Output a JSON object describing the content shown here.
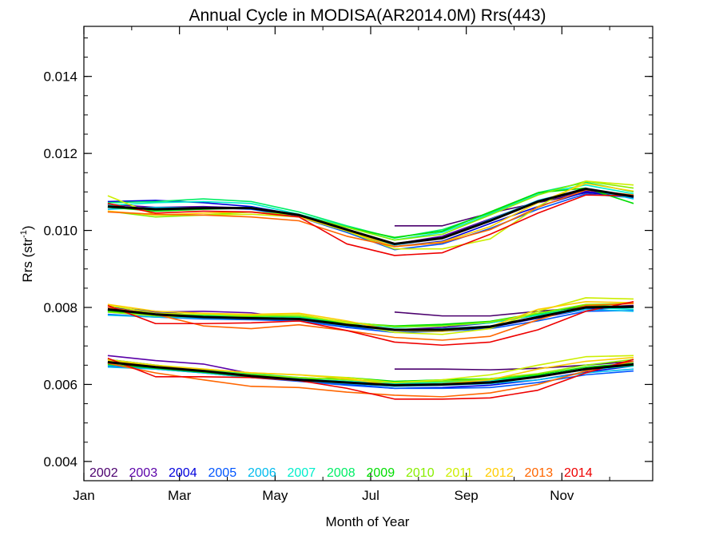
{
  "chart_data": {
    "type": "line",
    "title": "Annual Cycle in MODISA(AR2014.0M) Rrs(443)",
    "xlabel": "Month of Year",
    "ylabel_main": "Rrs (str",
    "ylabel_sup": "-1",
    "ylabel_close": ")",
    "xlim": [
      1,
      12.9
    ],
    "ylim": [
      0.0035,
      0.0153
    ],
    "x_ticks": [
      {
        "value": 1,
        "label": "Jan"
      },
      {
        "value": 3,
        "label": "Mar"
      },
      {
        "value": 5,
        "label": "May"
      },
      {
        "value": 7,
        "label": "Jul"
      },
      {
        "value": 9,
        "label": "Sep"
      },
      {
        "value": 11,
        "label": "Nov"
      }
    ],
    "y_ticks": [
      {
        "value": 0.004,
        "label": "0.004"
      },
      {
        "value": 0.006,
        "label": "0.006"
      },
      {
        "value": 0.008,
        "label": "0.008"
      },
      {
        "value": 0.01,
        "label": "0.010"
      },
      {
        "value": 0.012,
        "label": "0.012"
      },
      {
        "value": 0.014,
        "label": "0.014"
      }
    ],
    "grid": false,
    "legend_position": "bottom",
    "x": [
      1.5,
      2.5,
      3.5,
      4.5,
      5.5,
      6.5,
      7.5,
      8.5,
      9.5,
      10.5,
      11.5,
      12.5
    ],
    "series": [
      {
        "name": "2002",
        "color": "#4b006e",
        "groups": [
          [
            null,
            null,
            null,
            null,
            null,
            null,
            0.01012,
            0.01012,
            0.01045,
            0.01072,
            0.01098,
            0.01088
          ],
          [
            null,
            null,
            null,
            null,
            null,
            null,
            0.00788,
            0.00778,
            0.00778,
            0.0079,
            0.008,
            0.00802
          ],
          [
            null,
            null,
            null,
            null,
            null,
            null,
            0.0064,
            0.0064,
            0.00638,
            0.00642,
            0.0065,
            0.0066
          ]
        ]
      },
      {
        "name": "2003",
        "color": "#5a00a8",
        "groups": [
          [
            0.01068,
            0.0106,
            0.01062,
            0.01058,
            0.0104,
            0.01002,
            0.00965,
            0.00985,
            0.0103,
            0.01075,
            0.01102,
            0.01088
          ],
          [
            0.00792,
            0.00788,
            0.0079,
            0.00786,
            0.0077,
            0.00748,
            0.00742,
            0.00748,
            0.0076,
            0.0078,
            0.008,
            0.00805
          ],
          [
            0.00675,
            0.00662,
            0.00653,
            0.00628,
            0.00615,
            0.00605,
            0.00598,
            0.00602,
            0.00608,
            0.00622,
            0.0064,
            0.00655
          ]
        ]
      },
      {
        "name": "2004",
        "color": "#0000dd",
        "groups": [
          [
            0.01075,
            0.01078,
            0.01072,
            0.01062,
            0.0104,
            0.00998,
            0.00958,
            0.00972,
            0.01018,
            0.01062,
            0.011,
            0.01085
          ],
          [
            0.008,
            0.0079,
            0.00778,
            0.0077,
            0.00765,
            0.0075,
            0.00742,
            0.00742,
            0.00748,
            0.00772,
            0.00795,
            0.008
          ],
          [
            0.00665,
            0.0065,
            0.00636,
            0.0062,
            0.0061,
            0.006,
            0.0059,
            0.00592,
            0.00598,
            0.00612,
            0.00632,
            0.00648
          ]
        ]
      },
      {
        "name": "2005",
        "color": "#0055ff",
        "groups": [
          [
            0.0106,
            0.01055,
            0.0106,
            0.01055,
            0.01035,
            0.00995,
            0.0095,
            0.00965,
            0.01005,
            0.01055,
            0.01095,
            0.01085
          ],
          [
            0.00782,
            0.00775,
            0.0077,
            0.00768,
            0.00765,
            0.00748,
            0.00735,
            0.00738,
            0.00745,
            0.00765,
            0.0079,
            0.00792
          ],
          [
            0.00648,
            0.0064,
            0.0063,
            0.00618,
            0.00608,
            0.00598,
            0.0059,
            0.0059,
            0.00592,
            0.00605,
            0.00625,
            0.00635
          ]
        ]
      },
      {
        "name": "2006",
        "color": "#00bbee",
        "groups": [
          [
            0.01055,
            0.0106,
            0.01058,
            0.0106,
            0.0104,
            0.01,
            0.00962,
            0.0098,
            0.01028,
            0.01078,
            0.01108,
            0.01082
          ],
          [
            0.0078,
            0.00775,
            0.00772,
            0.0077,
            0.00768,
            0.00752,
            0.0074,
            0.00745,
            0.00752,
            0.00775,
            0.00795,
            0.0079
          ],
          [
            0.00645,
            0.0064,
            0.0063,
            0.00618,
            0.0061,
            0.00602,
            0.00595,
            0.00598,
            0.00602,
            0.00612,
            0.0063,
            0.0064
          ]
        ]
      },
      {
        "name": "2007",
        "color": "#00eecc",
        "groups": [
          [
            0.01065,
            0.01072,
            0.01075,
            0.0107,
            0.01042,
            0.0101,
            0.00975,
            0.00995,
            0.01042,
            0.01095,
            0.01118,
            0.01095
          ],
          [
            0.00788,
            0.0078,
            0.00778,
            0.00775,
            0.00772,
            0.0076,
            0.00748,
            0.00752,
            0.0076,
            0.0078,
            0.008,
            0.00795
          ],
          [
            0.0065,
            0.00645,
            0.00635,
            0.00625,
            0.00615,
            0.00608,
            0.00602,
            0.00605,
            0.0061,
            0.0062,
            0.00638,
            0.00648
          ]
        ]
      },
      {
        "name": "2008",
        "color": "#00ee66",
        "groups": [
          [
            0.01072,
            0.01075,
            0.01082,
            0.01075,
            0.01048,
            0.01012,
            0.0098,
            0.01002,
            0.01045,
            0.01098,
            0.01125,
            0.011
          ],
          [
            0.00795,
            0.00782,
            0.0078,
            0.00778,
            0.00775,
            0.00762,
            0.0075,
            0.00755,
            0.00762,
            0.00782,
            0.008,
            0.008
          ],
          [
            0.00655,
            0.00648,
            0.00638,
            0.00628,
            0.00618,
            0.00612,
            0.00605,
            0.00608,
            0.00612,
            0.00622,
            0.0064,
            0.0065
          ]
        ]
      },
      {
        "name": "2009",
        "color": "#00dd00",
        "groups": [
          [
            0.0106,
            0.0105,
            0.01055,
            0.01058,
            0.0104,
            0.01008,
            0.00982,
            0.00998,
            0.01048,
            0.01098,
            0.0111,
            0.0107
          ],
          [
            0.0079,
            0.0078,
            0.00776,
            0.00775,
            0.0077,
            0.0076,
            0.00752,
            0.00756,
            0.00764,
            0.00785,
            0.00805,
            0.00802
          ],
          [
            0.00652,
            0.00642,
            0.00632,
            0.0062,
            0.00612,
            0.00618,
            0.00608,
            0.00612,
            0.00615,
            0.00625,
            0.00645,
            0.00655
          ]
        ]
      },
      {
        "name": "2010",
        "color": "#88ee00",
        "groups": [
          [
            0.0105,
            0.01035,
            0.0104,
            0.01048,
            0.0104,
            0.01008,
            0.00975,
            0.0099,
            0.0104,
            0.01092,
            0.01128,
            0.0111
          ],
          [
            0.00788,
            0.00778,
            0.00775,
            0.00778,
            0.00778,
            0.00762,
            0.0075,
            0.00752,
            0.00762,
            0.00785,
            0.00808,
            0.0081
          ],
          [
            0.00658,
            0.00645,
            0.00635,
            0.00625,
            0.00618,
            0.00612,
            0.00605,
            0.00608,
            0.00615,
            0.00628,
            0.0065,
            0.00665
          ]
        ]
      },
      {
        "name": "2011",
        "color": "#ccee00",
        "groups": [
          [
            0.0109,
            0.0104,
            0.0104,
            0.01042,
            0.01035,
            0.00998,
            0.00952,
            0.00952,
            0.00978,
            0.01062,
            0.01128,
            0.01118
          ],
          [
            0.00805,
            0.00785,
            0.00782,
            0.0078,
            0.00782,
            0.0076,
            0.00735,
            0.0073,
            0.00745,
            0.0079,
            0.00825,
            0.00822
          ],
          [
            0.00665,
            0.0065,
            0.0064,
            0.0063,
            0.00625,
            0.00618,
            0.00605,
            0.00612,
            0.00625,
            0.0065,
            0.00672,
            0.00675
          ]
        ]
      },
      {
        "name": "2012",
        "color": "#ffcc00",
        "groups": [
          [
            0.0105,
            0.0104,
            0.01045,
            0.01048,
            0.01035,
            0.01,
            0.00958,
            0.0097,
            0.0101,
            0.01072,
            0.01122,
            0.01102
          ],
          [
            0.00808,
            0.0079,
            0.00785,
            0.00782,
            0.00785,
            0.00765,
            0.0074,
            0.00738,
            0.0075,
            0.00795,
            0.00815,
            0.00812
          ],
          [
            0.00662,
            0.00648,
            0.0064,
            0.0063,
            0.00625,
            0.00615,
            0.00598,
            0.00602,
            0.00612,
            0.0064,
            0.0066,
            0.0067
          ]
        ]
      },
      {
        "name": "2013",
        "color": "#ff6600",
        "groups": [
          [
            0.01048,
            0.01042,
            0.0104,
            0.01035,
            0.01025,
            0.00985,
            0.00958,
            0.00968,
            0.01002,
            0.0106,
            0.01105,
            0.01092
          ],
          [
            0.008,
            0.00782,
            0.00752,
            0.00745,
            0.00755,
            0.0074,
            0.00722,
            0.00715,
            0.00725,
            0.00768,
            0.00805,
            0.0081
          ],
          [
            0.00655,
            0.0063,
            0.00612,
            0.00595,
            0.00592,
            0.0058,
            0.00572,
            0.00568,
            0.00578,
            0.006,
            0.00635,
            0.0066
          ]
        ]
      },
      {
        "name": "2014",
        "color": "#ee0000",
        "groups": [
          [
            0.0107,
            0.01045,
            0.0105,
            0.01048,
            0.01035,
            0.00965,
            0.00935,
            0.00942,
            0.0099,
            0.01045,
            0.01092,
            0.0109
          ],
          [
            0.00805,
            0.00758,
            0.00758,
            0.0076,
            0.00765,
            0.0074,
            0.0071,
            0.00702,
            0.0071,
            0.00742,
            0.0079,
            0.00815
          ],
          [
            0.00668,
            0.0062,
            0.0062,
            0.00618,
            0.0061,
            0.0059,
            0.00562,
            0.00562,
            0.00565,
            0.00585,
            0.0063,
            0.00665
          ]
        ]
      },
      {
        "name": "",
        "color": "#000000",
        "stroke_width": 3,
        "groups": [
          [
            0.01062,
            0.01055,
            0.01058,
            0.01058,
            0.0104,
            0.01002,
            0.00965,
            0.0098,
            0.01025,
            0.01075,
            0.01108,
            0.01088
          ],
          [
            0.00795,
            0.00782,
            0.00775,
            0.00772,
            0.0077,
            0.00755,
            0.00742,
            0.00742,
            0.0075,
            0.00775,
            0.008,
            0.00802
          ],
          [
            0.00658,
            0.00645,
            0.00635,
            0.00622,
            0.00612,
            0.00605,
            0.00598,
            0.006,
            0.00605,
            0.0062,
            0.0064,
            0.00652
          ]
        ]
      }
    ]
  }
}
